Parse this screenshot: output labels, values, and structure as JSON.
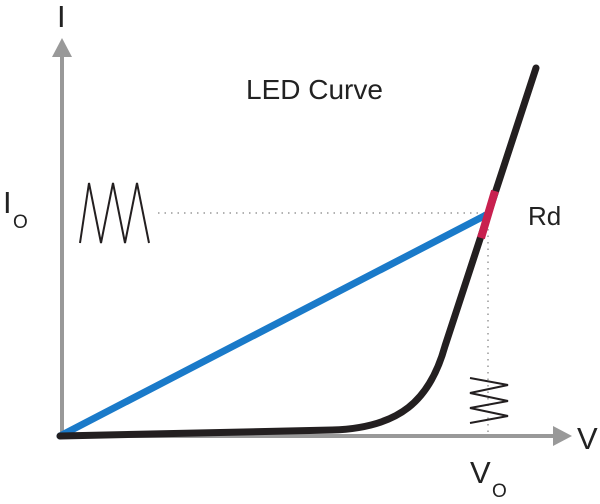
{
  "title": "LED Curve",
  "y_axis": {
    "label": "I"
  },
  "x_axis": {
    "label": "V"
  },
  "operating_current": {
    "main": "I",
    "subscript": "O"
  },
  "operating_voltage": {
    "main": "V",
    "subscript": "O"
  },
  "dynamic_resistance_label": "Rd",
  "colors": {
    "axes": "#999999",
    "led_curve": "#231f20",
    "load_line": "#1a7ac9",
    "dynamic_segment": "#c8204f",
    "guides": "#999999",
    "ripple": "#231f20"
  }
}
